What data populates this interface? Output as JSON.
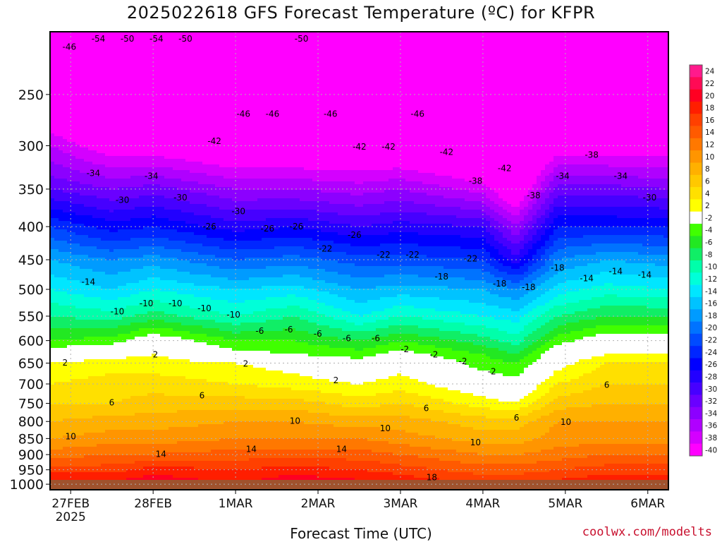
{
  "chart_data": {
    "type": "heatmap",
    "title": "2025022618 GFS Forecast Temperature (ºC) for KFPR",
    "xlabel": "Forecast Time (UTC)",
    "ylabel": "",
    "credit": "coolwx.com/modelts",
    "x_ticks": [
      {
        "day": 0,
        "label": "27FEB",
        "sublabel": "2025"
      },
      {
        "day": 1,
        "label": "28FEB"
      },
      {
        "day": 2,
        "label": "1MAR"
      },
      {
        "day": 3,
        "label": "2MAR"
      },
      {
        "day": 4,
        "label": "3MAR"
      },
      {
        "day": 5,
        "label": "4MAR"
      },
      {
        "day": 6,
        "label": "5MAR"
      },
      {
        "day": 7,
        "label": "6MAR"
      }
    ],
    "xlim_days": [
      -0.25,
      7.25
    ],
    "y_ticks_hPa": [
      250,
      300,
      350,
      400,
      450,
      500,
      550,
      600,
      650,
      700,
      750,
      800,
      850,
      900,
      950,
      1000
    ],
    "ylim_hPa": [
      200,
      1020
    ],
    "y_scale": "log",
    "grid": true,
    "colorbar": {
      "levels": [
        24,
        22,
        20,
        18,
        16,
        14,
        12,
        10,
        8,
        6,
        4,
        2,
        -2,
        -4,
        -6,
        -8,
        -10,
        -12,
        -14,
        -16,
        -18,
        -20,
        -22,
        -24,
        -26,
        -28,
        -30,
        -32,
        -34,
        -36,
        -38,
        -40
      ],
      "colors": [
        "#ff1a8c",
        "#ff0a55",
        "#ff0022",
        "#ff1e00",
        "#ff4000",
        "#ff5a00",
        "#ff7800",
        "#ff9500",
        "#ffb000",
        "#ffc800",
        "#ffe000",
        "#ffff00",
        "#ffffff",
        "#40ff00",
        "#22e822",
        "#10ee66",
        "#00ffaa",
        "#00ffd9",
        "#00e6ff",
        "#00c3ff",
        "#009bff",
        "#0073ff",
        "#004bff",
        "#0026ff",
        "#0000ff",
        "#2200ff",
        "#4600ff",
        "#6a00ff",
        "#8c00ff",
        "#b000ff",
        "#d400ff",
        "#ff00ff"
      ]
    },
    "surface_color": "#a0522d",
    "grid_color": "#b0b0b0",
    "isotherm_labels_dashed": [
      "-46",
      "-54",
      "-50",
      "-54",
      "-50",
      "-42",
      "-46",
      "-46",
      "-50",
      "-46",
      "-42",
      "-42",
      "-46",
      "-42",
      "-38",
      "-42",
      "-38",
      "-34",
      "-38",
      "-34",
      "-30",
      "-34",
      "-30",
      "-34",
      "-30",
      "-26",
      "-30",
      "-26",
      "-26",
      "-22",
      "-26",
      "-22",
      "-22",
      "-18",
      "-22",
      "-18",
      "-18",
      "-18",
      "-14",
      "-14",
      "-14",
      "-14",
      "-10",
      "-10",
      "-10",
      "-10",
      "-10",
      "-6",
      "-6",
      "-6",
      "-6",
      "-6",
      "-2",
      "-2",
      "-2",
      "-2"
    ],
    "isotherm_labels_solid": [
      "2",
      "2",
      "2",
      "2",
      "6",
      "6",
      "6",
      "6",
      "6",
      "10",
      "10",
      "10",
      "10",
      "10",
      "14",
      "14",
      "14",
      "18"
    ],
    "profiles": [
      {
        "day": -0.25,
        "temps": [
          [
            250,
            -44
          ],
          [
            300,
            -36
          ],
          [
            350,
            -30
          ],
          [
            400,
            -22
          ],
          [
            450,
            -16
          ],
          [
            500,
            -12
          ],
          [
            550,
            -8
          ],
          [
            600,
            -4
          ],
          [
            630,
            0
          ],
          [
            650,
            2
          ],
          [
            700,
            4
          ],
          [
            750,
            6
          ],
          [
            800,
            8
          ],
          [
            850,
            10
          ],
          [
            900,
            13
          ],
          [
            950,
            17
          ],
          [
            1000,
            21
          ]
        ]
      },
      {
        "day": 0.5,
        "temps": [
          [
            250,
            -46
          ],
          [
            300,
            -40
          ],
          [
            350,
            -32
          ],
          [
            400,
            -25
          ],
          [
            450,
            -18
          ],
          [
            500,
            -14
          ],
          [
            550,
            -9
          ],
          [
            600,
            -3
          ],
          [
            630,
            1
          ],
          [
            650,
            3
          ],
          [
            700,
            5
          ],
          [
            750,
            6
          ],
          [
            800,
            9
          ],
          [
            850,
            11
          ],
          [
            900,
            14
          ],
          [
            950,
            17
          ],
          [
            1000,
            21
          ]
        ]
      },
      {
        "day": 1.0,
        "temps": [
          [
            250,
            -46
          ],
          [
            300,
            -40
          ],
          [
            350,
            -31
          ],
          [
            400,
            -24
          ],
          [
            450,
            -17
          ],
          [
            500,
            -12
          ],
          [
            550,
            -7
          ],
          [
            600,
            0
          ],
          [
            630,
            2
          ],
          [
            650,
            3
          ],
          [
            700,
            5
          ],
          [
            750,
            7
          ],
          [
            800,
            9
          ],
          [
            850,
            11
          ],
          [
            900,
            14
          ],
          [
            950,
            19
          ],
          [
            1000,
            22
          ]
        ]
      },
      {
        "day": 2.0,
        "temps": [
          [
            250,
            -48
          ],
          [
            300,
            -42
          ],
          [
            350,
            -34
          ],
          [
            400,
            -27
          ],
          [
            450,
            -20
          ],
          [
            500,
            -14
          ],
          [
            550,
            -10
          ],
          [
            600,
            -4
          ],
          [
            630,
            -1
          ],
          [
            650,
            2
          ],
          [
            700,
            4
          ],
          [
            750,
            7
          ],
          [
            800,
            10
          ],
          [
            850,
            12
          ],
          [
            900,
            15
          ],
          [
            950,
            18
          ],
          [
            1000,
            20
          ]
        ]
      },
      {
        "day": 2.7,
        "temps": [
          [
            250,
            -48
          ],
          [
            300,
            -42
          ],
          [
            350,
            -34
          ],
          [
            400,
            -26
          ],
          [
            450,
            -19
          ],
          [
            500,
            -13
          ],
          [
            550,
            -8
          ],
          [
            600,
            -4
          ],
          [
            630,
            -2
          ],
          [
            650,
            1
          ],
          [
            700,
            3
          ],
          [
            750,
            7
          ],
          [
            800,
            10
          ],
          [
            850,
            12
          ],
          [
            900,
            15
          ],
          [
            950,
            19
          ],
          [
            1000,
            22
          ]
        ]
      },
      {
        "day": 3.5,
        "temps": [
          [
            250,
            -49
          ],
          [
            300,
            -42
          ],
          [
            350,
            -35
          ],
          [
            400,
            -28
          ],
          [
            450,
            -21
          ],
          [
            500,
            -16
          ],
          [
            550,
            -12
          ],
          [
            600,
            -6
          ],
          [
            630,
            -3
          ],
          [
            650,
            -1
          ],
          [
            700,
            2
          ],
          [
            750,
            5
          ],
          [
            800,
            9
          ],
          [
            850,
            12
          ],
          [
            900,
            15
          ],
          [
            950,
            18
          ],
          [
            1000,
            21
          ]
        ]
      },
      {
        "day": 4.0,
        "temps": [
          [
            250,
            -48
          ],
          [
            300,
            -42
          ],
          [
            350,
            -34
          ],
          [
            400,
            -27
          ],
          [
            450,
            -21
          ],
          [
            500,
            -15
          ],
          [
            550,
            -10
          ],
          [
            600,
            -4
          ],
          [
            630,
            -1
          ],
          [
            650,
            1
          ],
          [
            700,
            3
          ],
          [
            750,
            6
          ],
          [
            800,
            9
          ],
          [
            850,
            11
          ],
          [
            900,
            14
          ],
          [
            950,
            17
          ],
          [
            1000,
            20
          ]
        ]
      },
      {
        "day": 5.0,
        "temps": [
          [
            250,
            -48
          ],
          [
            300,
            -44
          ],
          [
            350,
            -37
          ],
          [
            400,
            -28
          ],
          [
            450,
            -22
          ],
          [
            500,
            -16
          ],
          [
            550,
            -12
          ],
          [
            600,
            -7
          ],
          [
            630,
            -4
          ],
          [
            650,
            -3
          ],
          [
            700,
            0
          ],
          [
            750,
            3
          ],
          [
            800,
            7
          ],
          [
            850,
            9
          ],
          [
            900,
            12
          ],
          [
            950,
            15
          ],
          [
            1000,
            18
          ]
        ]
      },
      {
        "day": 5.4,
        "temps": [
          [
            250,
            -48
          ],
          [
            300,
            -46
          ],
          [
            350,
            -42
          ],
          [
            400,
            -34
          ],
          [
            450,
            -27
          ],
          [
            500,
            -18
          ],
          [
            550,
            -13
          ],
          [
            600,
            -9
          ],
          [
            630,
            -6
          ],
          [
            650,
            -4
          ],
          [
            700,
            -1
          ],
          [
            750,
            2
          ],
          [
            800,
            7
          ],
          [
            850,
            9
          ],
          [
            900,
            12
          ],
          [
            950,
            15
          ],
          [
            1000,
            18
          ]
        ]
      },
      {
        "day": 5.9,
        "temps": [
          [
            250,
            -48
          ],
          [
            300,
            -40
          ],
          [
            350,
            -31
          ],
          [
            400,
            -24
          ],
          [
            450,
            -18
          ],
          [
            500,
            -13
          ],
          [
            550,
            -8
          ],
          [
            600,
            -3
          ],
          [
            630,
            0
          ],
          [
            650,
            1
          ],
          [
            700,
            4
          ],
          [
            750,
            7
          ],
          [
            800,
            10
          ],
          [
            850,
            11
          ],
          [
            900,
            13
          ],
          [
            950,
            16
          ],
          [
            1000,
            19
          ]
        ]
      },
      {
        "day": 6.5,
        "temps": [
          [
            250,
            -50
          ],
          [
            300,
            -40
          ],
          [
            350,
            -31
          ],
          [
            400,
            -24
          ],
          [
            450,
            -16
          ],
          [
            500,
            -11
          ],
          [
            550,
            -6
          ],
          [
            600,
            0
          ],
          [
            630,
            2
          ],
          [
            650,
            4
          ],
          [
            700,
            6
          ],
          [
            750,
            8
          ],
          [
            800,
            10
          ],
          [
            850,
            11
          ],
          [
            900,
            14
          ],
          [
            950,
            17
          ],
          [
            1000,
            20
          ]
        ]
      },
      {
        "day": 7.25,
        "temps": [
          [
            250,
            -50
          ],
          [
            300,
            -40
          ],
          [
            350,
            -32
          ],
          [
            400,
            -24
          ],
          [
            450,
            -17
          ],
          [
            500,
            -12
          ],
          [
            550,
            -6
          ],
          [
            600,
            0
          ],
          [
            630,
            2
          ],
          [
            650,
            4
          ],
          [
            700,
            6
          ],
          [
            750,
            8
          ],
          [
            800,
            10
          ],
          [
            850,
            11
          ],
          [
            900,
            14
          ],
          [
            950,
            17
          ],
          [
            1000,
            20
          ]
        ]
      }
    ]
  }
}
